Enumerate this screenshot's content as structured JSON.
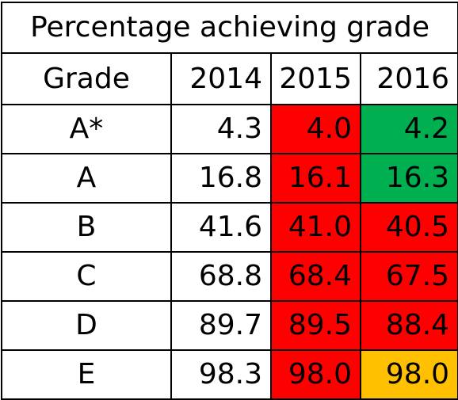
{
  "table": {
    "title": "Percentage achieving grade",
    "headers": {
      "grade": "Grade",
      "y2014": "2014",
      "y2015": "2015",
      "y2016": "2016"
    },
    "rows": [
      {
        "grade": "A*",
        "y2014": "4.3",
        "y2015": "4.0",
        "y2016": "4.2",
        "color2015": "red",
        "color2016": "green"
      },
      {
        "grade": "A",
        "y2014": "16.8",
        "y2015": "16.1",
        "y2016": "16.3",
        "color2015": "red",
        "color2016": "green"
      },
      {
        "grade": "B",
        "y2014": "41.6",
        "y2015": "41.0",
        "y2016": "40.5",
        "color2015": "red",
        "color2016": "red"
      },
      {
        "grade": "C",
        "y2014": "68.8",
        "y2015": "68.4",
        "y2016": "67.5",
        "color2015": "red",
        "color2016": "red"
      },
      {
        "grade": "D",
        "y2014": "89.7",
        "y2015": "89.5",
        "y2016": "88.4",
        "color2015": "red",
        "color2016": "red"
      },
      {
        "grade": "E",
        "y2014": "98.3",
        "y2015": "98.0",
        "y2016": "98.0",
        "color2015": "red",
        "color2016": "amber"
      }
    ]
  },
  "colors": {
    "red": "#ff0000",
    "green": "#00b050",
    "amber": "#ffc000"
  }
}
